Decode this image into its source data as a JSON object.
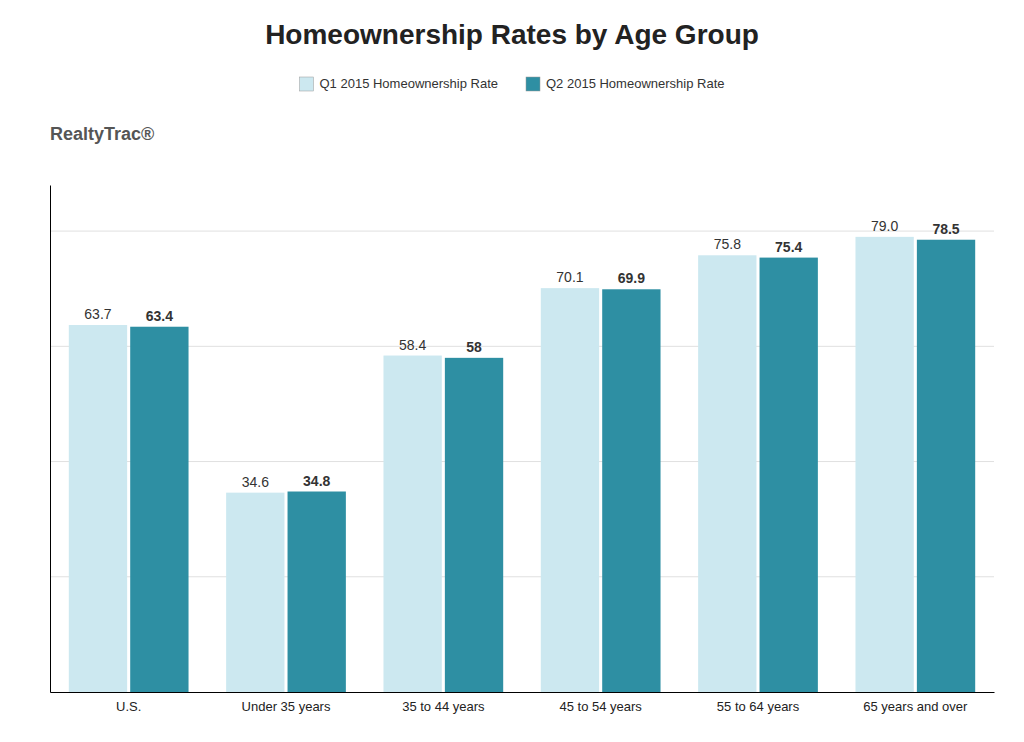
{
  "chart_data": {
    "type": "bar",
    "title": "Homeownership Rates by Age Group",
    "annotations": [
      "Realty",
      "Trac",
      "®"
    ],
    "categories": [
      "U.S.",
      "Under 35 years",
      "35 to 44 years",
      "45 to 54 years",
      "55 to 64 years",
      "65 years and over"
    ],
    "series": [
      {
        "name": "Q1 2015 Homeownership Rate",
        "color": "#cce8f0",
        "values": [
          63.7,
          34.6,
          58.4,
          70.1,
          75.8,
          79.0
        ],
        "value_labels": [
          "63.7",
          "34.6",
          "58.4",
          "70.1",
          "75.8",
          "79.0"
        ]
      },
      {
        "name": "Q2 2015 Homeownership Rate",
        "color": "#2e8fa3",
        "values": [
          63.4,
          34.8,
          58.0,
          69.9,
          75.4,
          78.5
        ]
      }
    ],
    "ylim": [
      0,
      88
    ],
    "yticks": [
      20,
      40,
      60,
      80
    ],
    "grid": true,
    "data_labels": true,
    "tick_labels": "x",
    "legend": "top"
  }
}
